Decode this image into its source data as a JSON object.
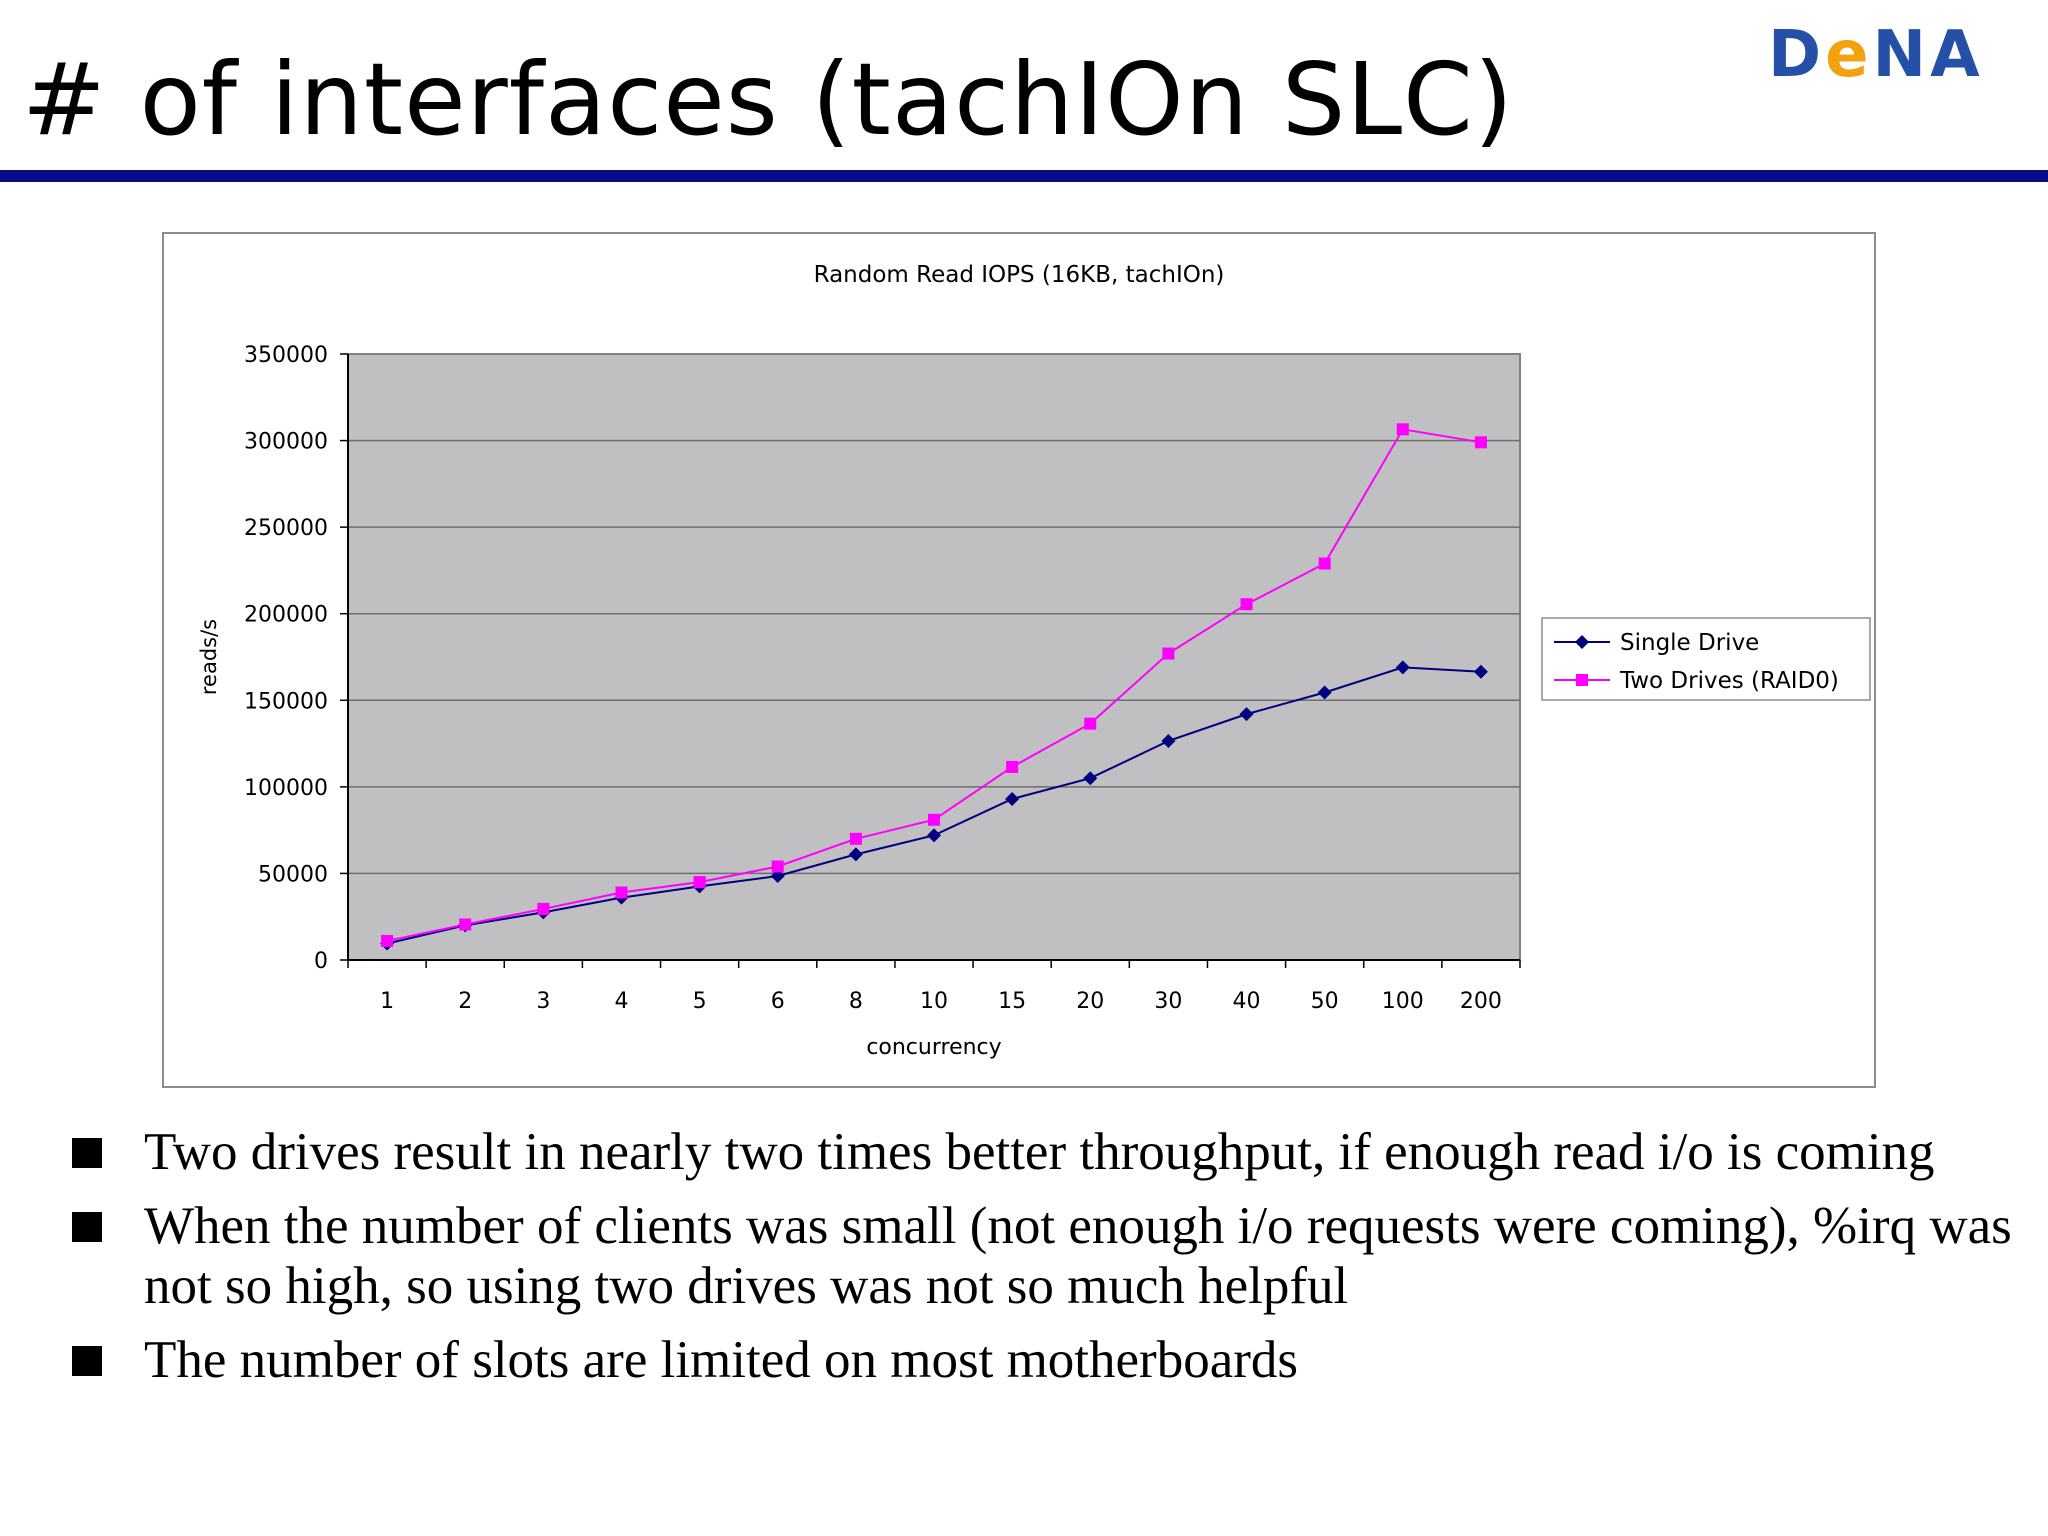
{
  "slide": {
    "title": "# of interfaces (tachIOn SLC)",
    "logo": "DeNA",
    "bullets": [
      "Two drives result in nearly two times better throughput, if enough read i/o is coming",
      "When the number of clients was small (not enough i/o requests were coming), %irq was not so high, so using two drives was not so much helpful",
      "The number of slots are limited on most motherboards"
    ]
  },
  "chart_data": {
    "type": "line",
    "title": "Random Read IOPS (16KB, tachIOn)",
    "xlabel": "concurrency",
    "ylabel": "reads/s",
    "categories": [
      "1",
      "2",
      "3",
      "4",
      "5",
      "6",
      "8",
      "10",
      "15",
      "20",
      "30",
      "40",
      "50",
      "100",
      "200"
    ],
    "ylim": [
      0,
      350000
    ],
    "yticks": [
      0,
      50000,
      100000,
      150000,
      200000,
      250000,
      300000,
      350000
    ],
    "ytick_labels": [
      "0",
      "50000",
      "100000",
      "150000",
      "200000",
      "250000",
      "300000",
      "350000"
    ],
    "grid": true,
    "legend": "right",
    "plot_background": "#c0bfc1",
    "series": [
      {
        "name": "Single Drive",
        "color": "#000080",
        "marker": "diamond",
        "values": [
          9500,
          20000,
          27500,
          36000,
          42500,
          48500,
          61000,
          72000,
          93000,
          105000,
          126500,
          142000,
          154500,
          169000,
          166500
        ]
      },
      {
        "name": "Two Drives (RAID0)",
        "color": "#ff00ff",
        "marker": "square",
        "values": [
          11000,
          20500,
          29500,
          39000,
          45000,
          54000,
          70000,
          81000,
          111500,
          136500,
          177000,
          205500,
          229000,
          306500,
          299000
        ]
      }
    ]
  }
}
